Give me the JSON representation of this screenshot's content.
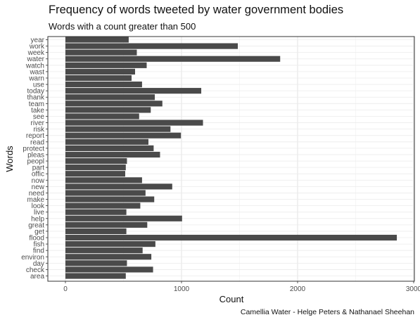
{
  "chart_data": {
    "type": "bar",
    "orientation": "horizontal",
    "title": "Frequency of words tweeted by water government bodies",
    "subtitle": "Words with a count greater than 500",
    "xlabel": "Count",
    "ylabel": "Words",
    "caption": "Camellia Water - Helge Peters & Nathanael Sheehan",
    "xlim": [
      0,
      3000
    ],
    "xticks": [
      0,
      1000,
      2000,
      3000
    ],
    "grid": true,
    "bar_color": "#4a4a4a",
    "categories": [
      "year",
      "work",
      "week",
      "water",
      "watch",
      "wast",
      "warn",
      "use",
      "today",
      "thank",
      "team",
      "take",
      "see",
      "river",
      "risk",
      "report",
      "read",
      "protect",
      "pleas",
      "peopl",
      "part",
      "offic",
      "now",
      "new",
      "need",
      "make",
      "look",
      "live",
      "help",
      "great",
      "get",
      "flood",
      "fish",
      "find",
      "environ",
      "day",
      "check",
      "area"
    ],
    "values": [
      545,
      1485,
      615,
      1850,
      700,
      600,
      570,
      660,
      1170,
      770,
      835,
      735,
      635,
      1185,
      905,
      995,
      715,
      760,
      815,
      530,
      520,
      515,
      660,
      920,
      690,
      765,
      645,
      525,
      1005,
      705,
      525,
      2855,
      775,
      665,
      740,
      530,
      755,
      520
    ]
  }
}
